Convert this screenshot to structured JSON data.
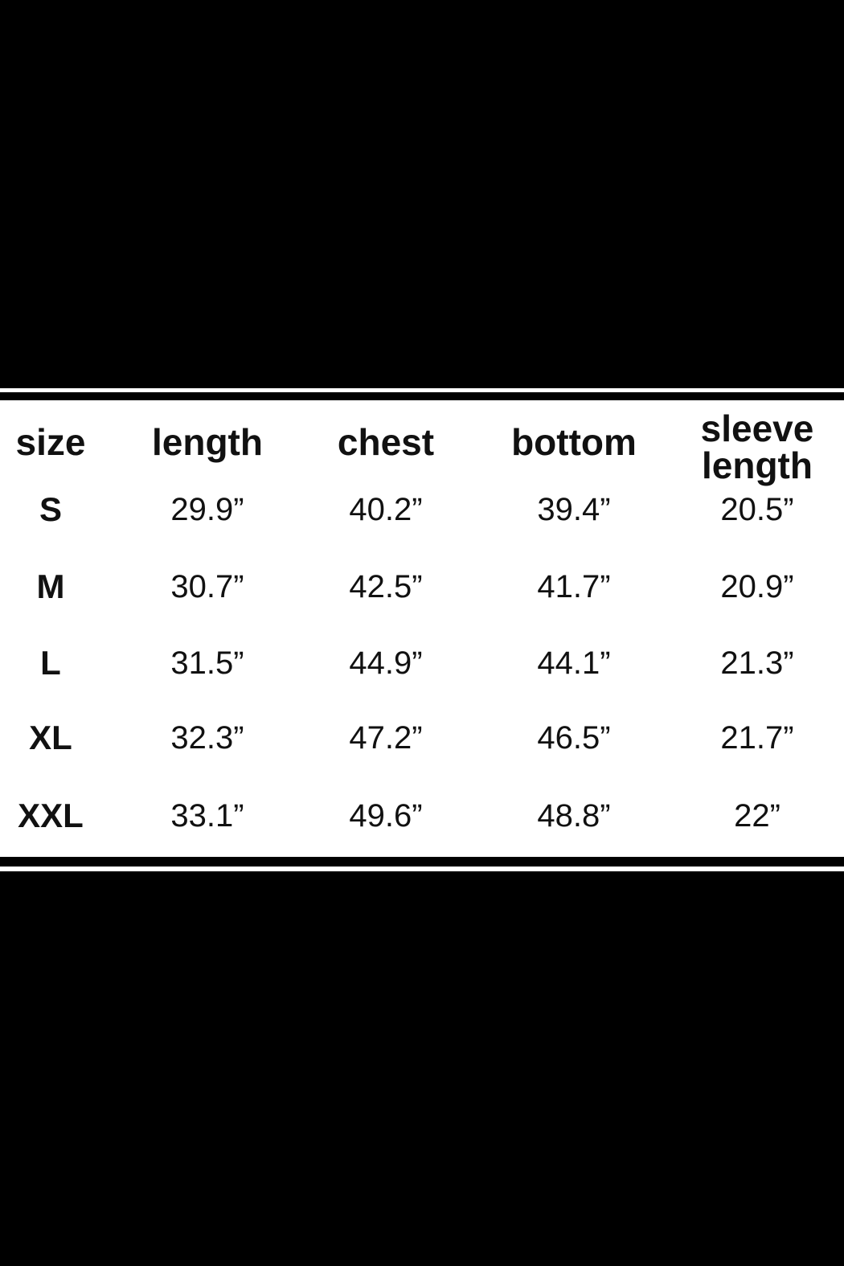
{
  "table": {
    "header": [
      "size",
      "length",
      "chest",
      "bottom",
      "sleeve length"
    ],
    "rows": [
      [
        "S",
        "29.9”",
        "40.2”",
        "39.4”",
        "20.5”"
      ],
      [
        "M",
        "30.7”",
        "42.5”",
        "41.7”",
        "20.9”"
      ],
      [
        "L",
        "31.5”",
        "44.9”",
        "44.1”",
        "21.3”"
      ],
      [
        "XL",
        "32.3”",
        "47.2”",
        "46.5”",
        "21.7”"
      ],
      [
        "XXL",
        "33.1”",
        "49.6”",
        "48.8”",
        "22”"
      ]
    ]
  }
}
